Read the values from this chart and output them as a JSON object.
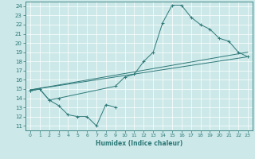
{
  "xlabel": "Humidex (Indice chaleur)",
  "bg_color": "#cce8e8",
  "line_color": "#2d7878",
  "grid_color": "#ffffff",
  "xlim": [
    -0.5,
    23.5
  ],
  "ylim": [
    10.5,
    24.5
  ],
  "xticks": [
    0,
    1,
    2,
    3,
    4,
    5,
    6,
    7,
    8,
    9,
    10,
    11,
    12,
    13,
    14,
    15,
    16,
    17,
    18,
    19,
    20,
    21,
    22,
    23
  ],
  "yticks": [
    11,
    12,
    13,
    14,
    15,
    16,
    17,
    18,
    19,
    20,
    21,
    22,
    23,
    24
  ],
  "curve1_x": [
    0,
    1,
    2,
    3,
    4,
    5,
    6,
    7,
    8,
    9
  ],
  "curve1_y": [
    14.8,
    15.0,
    13.8,
    13.2,
    12.2,
    12.0,
    12.0,
    11.0,
    13.3,
    13.0
  ],
  "curve2_x": [
    0,
    1,
    2,
    3,
    9,
    10,
    11,
    12,
    13,
    14,
    15,
    16,
    17,
    18,
    19,
    20,
    21,
    22,
    23
  ],
  "curve2_y": [
    14.8,
    15.0,
    13.8,
    14.0,
    15.3,
    16.3,
    16.6,
    18.0,
    19.0,
    22.2,
    24.1,
    24.1,
    22.8,
    22.0,
    21.5,
    20.5,
    20.2,
    19.0,
    18.5
  ],
  "line1_x": [
    0,
    23
  ],
  "line1_y": [
    14.9,
    18.5
  ],
  "line2_x": [
    0,
    23
  ],
  "line2_y": [
    14.9,
    19.0
  ]
}
